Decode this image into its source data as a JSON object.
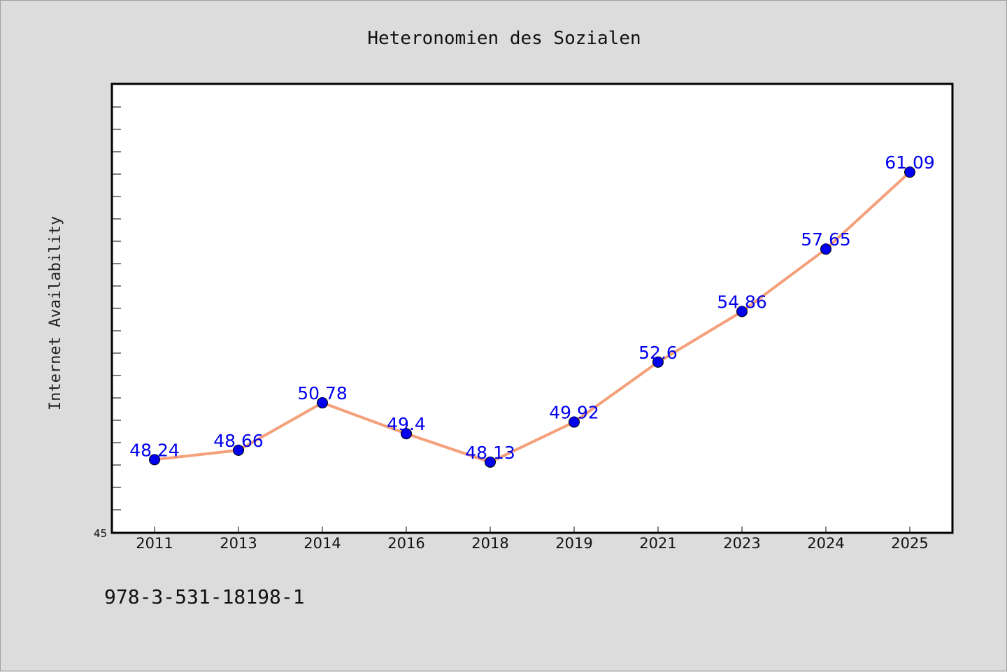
{
  "chart_data": {
    "type": "line",
    "title": "Heteronomien des Sozialen",
    "xlabel": "",
    "ylabel": "Internet Availability",
    "categories": [
      "2011",
      "2013",
      "2014",
      "2016",
      "2018",
      "2019",
      "2021",
      "2023",
      "2024",
      "2025"
    ],
    "series": [
      {
        "values": [
          48.24,
          48.66,
          50.78,
          49.4,
          48.13,
          49.92,
          52.6,
          54.86,
          57.65,
          61.09
        ],
        "data_labels": [
          "48.24",
          "48.66",
          "50.78",
          "49.4",
          "48.13",
          "49.92",
          "52.6",
          "54.86",
          "57.65",
          "61.09"
        ],
        "line_color": "#f4a07a",
        "marker_color": "#0000ee"
      }
    ],
    "ylim": [
      45,
      65
    ],
    "y_tick_label": "45",
    "grid": false,
    "legend": "none",
    "colors": {
      "background": "#dcdcdc",
      "plot_background": "#ffffff"
    }
  },
  "footer_text": "978-3-531-18198-1"
}
